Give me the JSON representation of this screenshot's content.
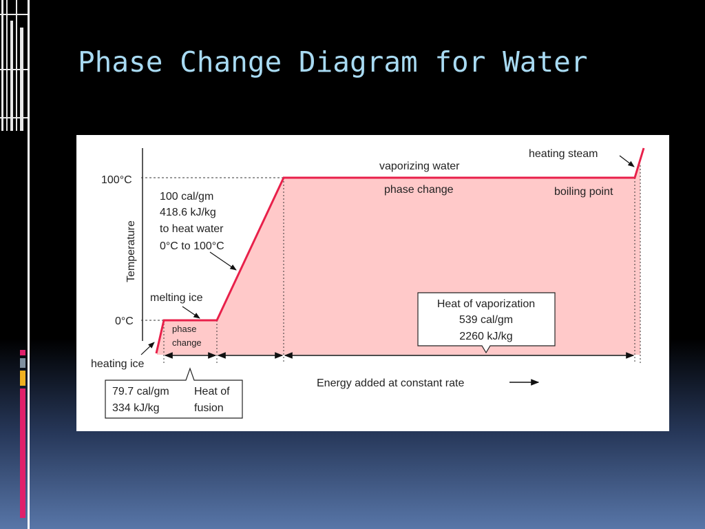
{
  "slide": {
    "title": "Phase Change Diagram for Water"
  },
  "diagram": {
    "axis_label": "Temperature",
    "tick_100": "100°C",
    "tick_0": "0°C",
    "heating_water": [
      "100 cal/gm",
      "418.6 kJ/kg",
      "to heat water",
      "0°C to 100°C"
    ],
    "melting_ice": "melting ice",
    "phase_change_small": [
      "phase",
      "change"
    ],
    "heating_ice": "heating ice",
    "fusion_box": {
      "values": [
        "79.7 cal/gm",
        "334 kJ/kg"
      ],
      "label": [
        "Heat of",
        "fusion"
      ]
    },
    "vaporizing_water": "vaporizing water",
    "phase_change": "phase change",
    "boiling_point": "boiling point",
    "heating_steam": "heating steam",
    "vaporization_box": [
      "Heat of vaporization",
      "539 cal/gm",
      "2260 kJ/kg"
    ],
    "energy_label": "Energy added at constant rate"
  }
}
